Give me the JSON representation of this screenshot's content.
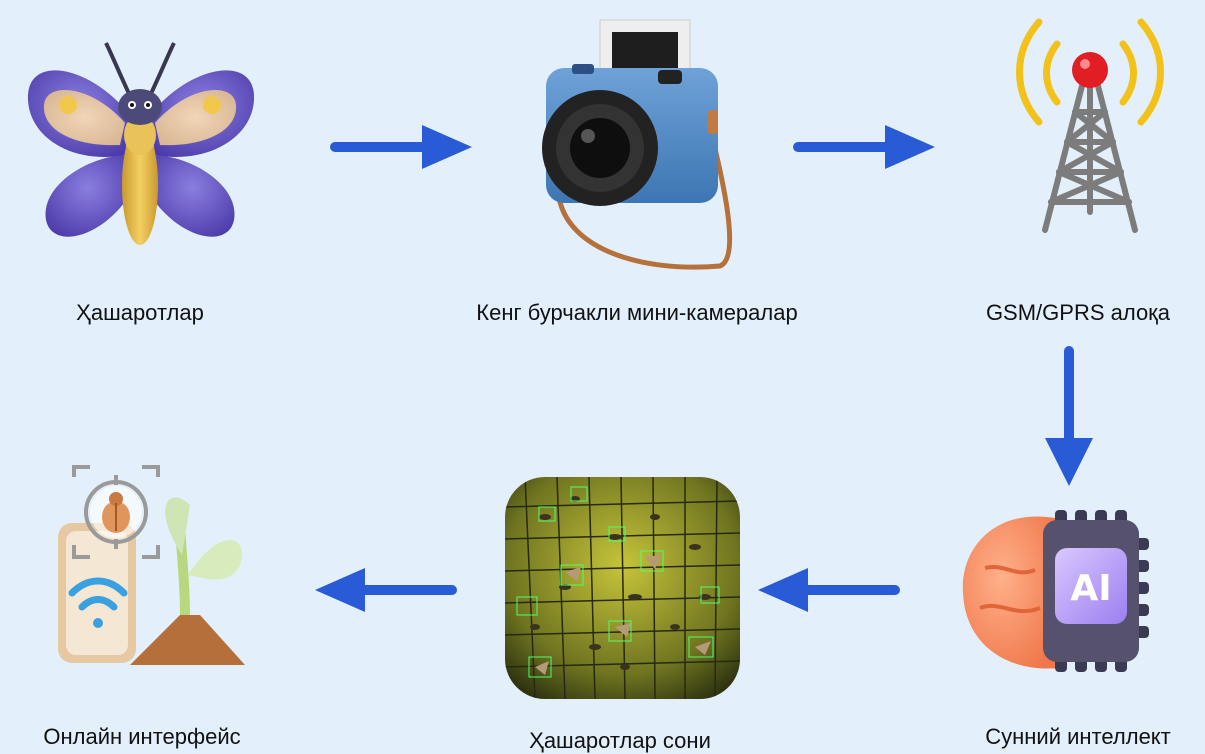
{
  "nodes": [
    {
      "id": "insects",
      "label": "Ҳашаротлар",
      "icon": "butterfly-icon"
    },
    {
      "id": "camera",
      "label": "Кенг бурчакли мини-камералар",
      "icon": "camera-icon"
    },
    {
      "id": "gsm",
      "label": "GSM/GPRS алоқа",
      "icon": "radio-tower-icon"
    },
    {
      "id": "ai",
      "label": "Сунний интеллект",
      "icon": "ai-chip-brain-icon",
      "chip_text": "AI"
    },
    {
      "id": "count",
      "label": "Ҳашаротлар сони",
      "icon": "insect-trap-photo"
    },
    {
      "id": "online",
      "label": "Онлайн интерфейс",
      "icon": "phone-plant-scan-icon"
    }
  ],
  "colors": {
    "background": "#e3f0fb",
    "arrow": "#2a5bd7",
    "text": "#111111"
  }
}
